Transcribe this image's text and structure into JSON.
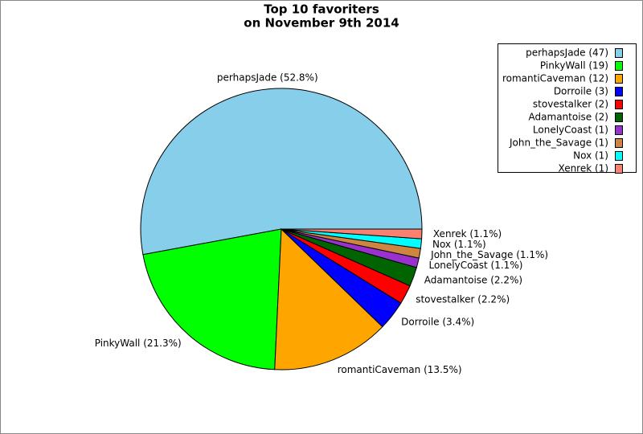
{
  "chart_data": {
    "type": "pie",
    "title": "Top 10 favoriters",
    "subtitle": "on November 9th 2014",
    "values": [
      52.8,
      21.3,
      13.5,
      3.4,
      2.2,
      2.2,
      1.1,
      1.1,
      1.1,
      1.1
    ],
    "value_labels": [
      "perhapsJade (52.8%)",
      "PinkyWall (21.3%)",
      "romantiCaveman (13.5%)",
      "Dorroile (3.4%)",
      "stovestalker (2.2%)",
      "Adamantoise (2.2%)",
      "LonelyCoast (1.1%)",
      "John_the_Savage (1.1%)",
      "Nox (1.1%)",
      "Xenrek (1.1%)"
    ],
    "legend_labels": [
      "perhapsJade (47)",
      "PinkyWall (19)",
      "romantiCaveman (12)",
      "Dorroile (3)",
      "stovestalker (2)",
      "Adamantoise (2)",
      "LonelyCoast (1)",
      "John_the_Savage (1)",
      "Nox (1)",
      "Xenrek (1)"
    ],
    "colors": [
      "#87ceeb",
      "#00ff00",
      "#ffa500",
      "#0000ff",
      "#ff0000",
      "#006400",
      "#9932cc",
      "#cd853f",
      "#00ffff",
      "#fa8072"
    ],
    "legend": "upper right"
  }
}
